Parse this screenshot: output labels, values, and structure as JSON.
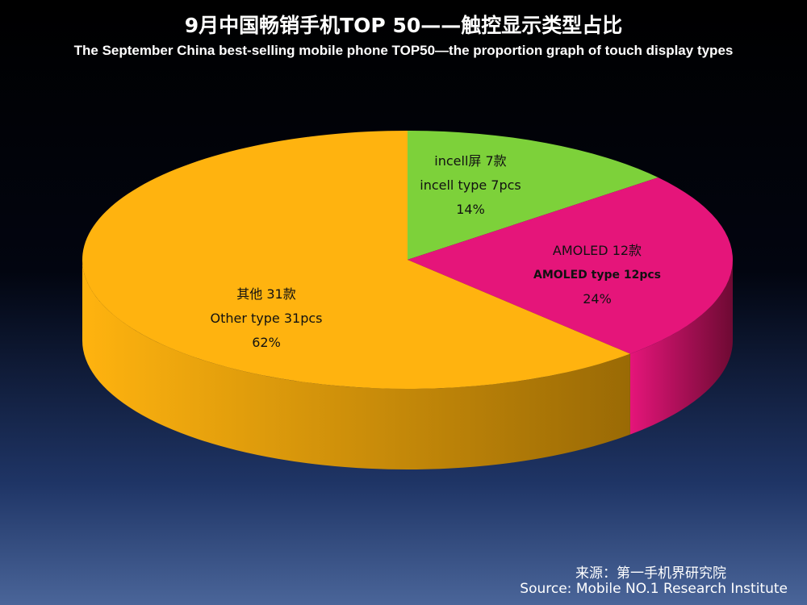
{
  "title": "9月中国畅销手机TOP 50——触控显示类型占比",
  "subtitle": "The September China best-selling mobile phone TOP50—the proportion graph of touch display types",
  "source_cn": "来源：第一手机界研究院",
  "source_en": "Source: Mobile NO.1 Research Institute",
  "chart_data": {
    "type": "pie",
    "style": "3d",
    "title": "9月中国畅销手机TOP 50——触控显示类型占比",
    "subtitle": "The September China best-selling mobile phone TOP50—the proportion graph of touch display types",
    "categories": [
      "incell屏",
      "AMOLED",
      "其他"
    ],
    "values": [
      7,
      12,
      31
    ],
    "percentages": [
      14,
      24,
      62
    ],
    "colors": [
      "#7dd13a",
      "#e5157a",
      "#ffb30f"
    ],
    "side_colors": [
      "#4f8a1f",
      "#6e0a33",
      "#9a6a05"
    ],
    "labels": [
      {
        "line1": "incell屏 7款",
        "line2": "incell type 7pcs",
        "line3": "14%"
      },
      {
        "line1": "AMOLED 12款",
        "line2": "AMOLED type   12pcs",
        "line3": "24%"
      },
      {
        "line1": "其他 31款",
        "line2": "Other type  31pcs",
        "line3": "62%"
      }
    ]
  }
}
